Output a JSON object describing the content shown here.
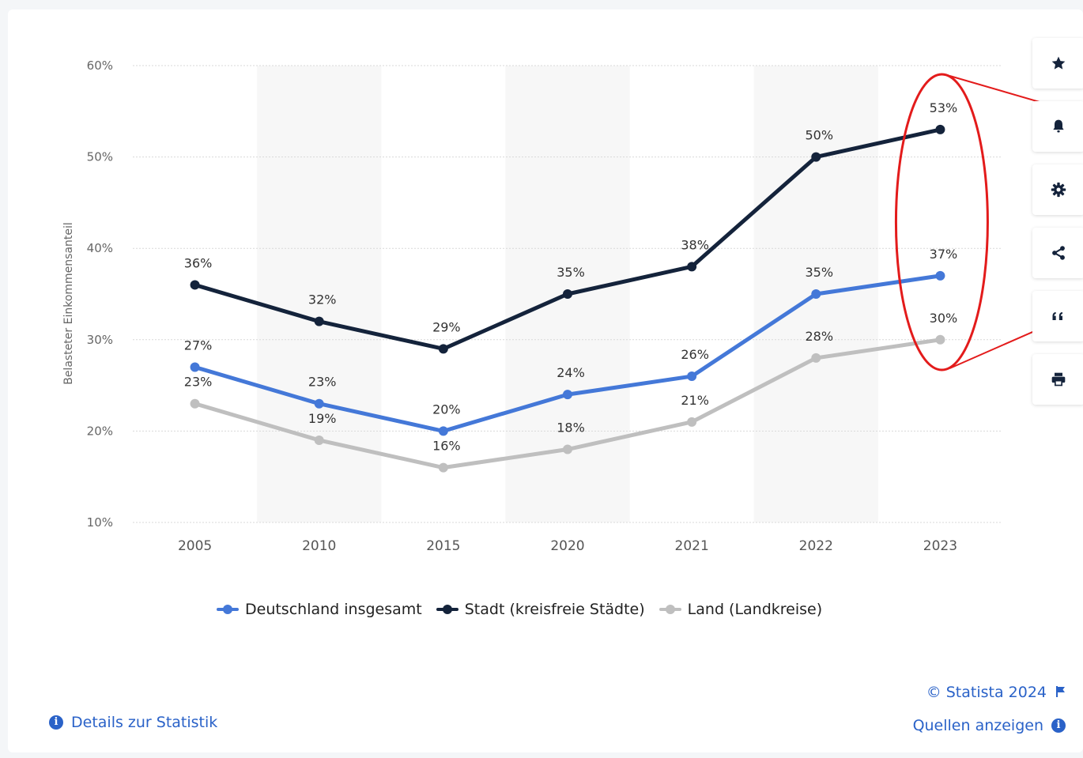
{
  "chart_data": {
    "type": "line",
    "categories": [
      "2005",
      "2010",
      "2015",
      "2020",
      "2021",
      "2022",
      "2023"
    ],
    "ylabel": "Belasteter Einkommensanteil",
    "ylim": [
      10,
      60
    ],
    "yticks": [
      10,
      20,
      30,
      40,
      50,
      60
    ],
    "ytick_labels": [
      "10%",
      "20%",
      "30%",
      "40%",
      "50%",
      "60%"
    ],
    "grid": true,
    "legend_position": "bottom",
    "series": [
      {
        "name": "Deutschland insgesamt",
        "color": "#4478d8",
        "values": [
          27,
          23,
          20,
          24,
          26,
          35,
          37
        ],
        "labels": [
          "27%",
          "23%",
          "20%",
          "24%",
          "26%",
          "35%",
          "37%"
        ]
      },
      {
        "name": "Stadt (kreisfreie Städte)",
        "color": "#14233b",
        "values": [
          36,
          32,
          29,
          35,
          38,
          50,
          53
        ],
        "labels": [
          "36%",
          "32%",
          "29%",
          "35%",
          "38%",
          "50%",
          "53%"
        ]
      },
      {
        "name": "Land (Landkreise)",
        "color": "#bfbfbf",
        "values": [
          23,
          19,
          16,
          18,
          21,
          28,
          30
        ],
        "labels": [
          "23%",
          "19%",
          "16%",
          "18%",
          "21%",
          "28%",
          "30%"
        ]
      }
    ],
    "annotation": {
      "type": "red-ellipse-highlight",
      "target": "2023",
      "color": "#e31b1b"
    }
  },
  "toolbar": {
    "items": [
      {
        "icon": "star-icon"
      },
      {
        "icon": "bell-icon"
      },
      {
        "icon": "gear-icon"
      },
      {
        "icon": "share-icon"
      },
      {
        "icon": "quote-icon"
      },
      {
        "icon": "print-icon"
      }
    ]
  },
  "footer": {
    "details_label": "Details zur Statistik",
    "copyright": "© Statista 2024",
    "sources_label": "Quellen anzeigen"
  },
  "colors": {
    "link": "#2a62c8",
    "grid": "#d9d9d9",
    "band": "#f7f7f7",
    "annotation": "#e31b1b"
  }
}
